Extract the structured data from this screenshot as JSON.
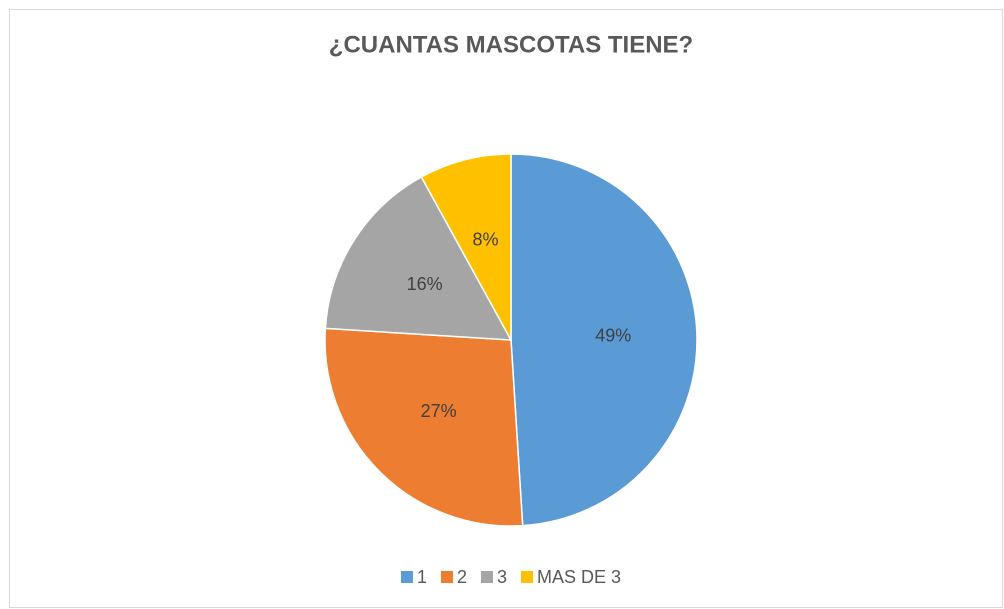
{
  "chart_data": {
    "type": "pie",
    "title": "¿CUANTAS MASCOTAS TIENE?",
    "categories": [
      "1",
      "2",
      "3",
      "MAS DE 3"
    ],
    "values": [
      49,
      27,
      16,
      8
    ],
    "value_labels": [
      "49%",
      "27%",
      "16%",
      "8%"
    ],
    "colors": [
      "#5b9bd5",
      "#ed7d31",
      "#a5a5a5",
      "#ffc000"
    ],
    "legend": "bottom"
  }
}
